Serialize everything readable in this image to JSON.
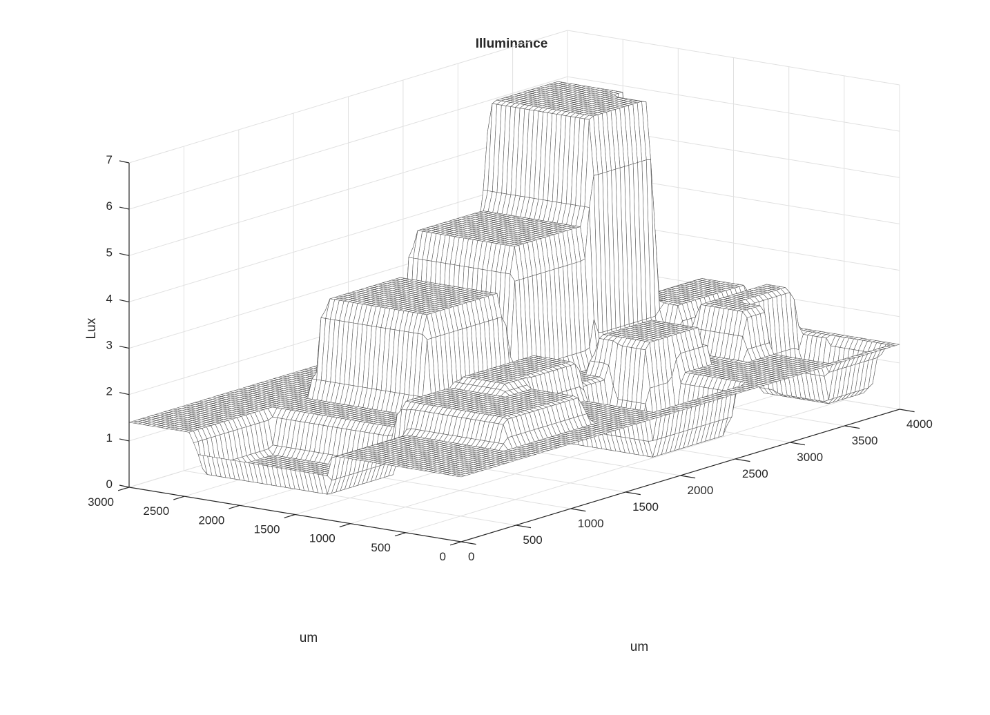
{
  "chart_data": {
    "type": "surface",
    "title": "Illuminance",
    "xlabel": "um",
    "ylabel": "um",
    "zlabel": "Lux",
    "xlim": [
      0,
      4000
    ],
    "ylim": [
      0,
      3000
    ],
    "zlim": [
      0,
      7
    ],
    "xticks": [
      "0",
      "500",
      "1000",
      "1500",
      "2000",
      "2500",
      "3000",
      "3500",
      "4000"
    ],
    "yticks": [
      "0",
      "500",
      "1000",
      "1500",
      "2000",
      "2500",
      "3000"
    ],
    "zticks": [
      "0",
      "1",
      "2",
      "3",
      "4",
      "5",
      "6",
      "7"
    ],
    "grid": true,
    "colormap": "white faces, grey mesh edges",
    "base_level": 1.4,
    "plateaus": [
      {
        "x": [
          0,
          700
        ],
        "y": [
          1200,
          2400
        ],
        "z": 0.5
      },
      {
        "x": [
          700,
          1450
        ],
        "y": [
          300,
          1300
        ],
        "z": 2.0
      },
      {
        "x": [
          1200,
          1950
        ],
        "y": [
          800,
          1250
        ],
        "z": 2.2
      },
      {
        "x": [
          1100,
          1850
        ],
        "y": [
          1400,
          2400
        ],
        "z": 3.5
      },
      {
        "x": [
          1900,
          2600
        ],
        "y": [
          1400,
          2400
        ],
        "z": 4.4
      },
      {
        "x": [
          2600,
          3300
        ],
        "y": [
          1400,
          2400
        ],
        "z": 6.7
      },
      {
        "x": [
          1950,
          2700
        ],
        "y": [
          200,
          1050
        ],
        "z": 0.3
      },
      {
        "x": [
          2450,
          3000
        ],
        "y": [
          750,
          1250
        ],
        "z": 2.2
      },
      {
        "x": [
          3200,
          3900
        ],
        "y": [
          600,
          1100
        ],
        "z": 2.4
      },
      {
        "x": [
          3200,
          3900
        ],
        "y": [
          1200,
          1700
        ],
        "z": 2.3
      },
      {
        "x": [
          3450,
          3900
        ],
        "y": [
          100,
          800
        ],
        "z": 0.4
      }
    ]
  }
}
